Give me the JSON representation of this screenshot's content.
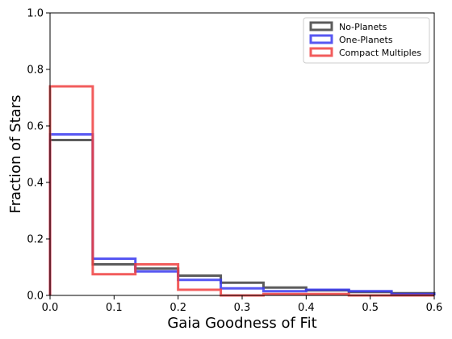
{
  "chart_data": {
    "type": "histogram",
    "xlabel": "Gaia Goodness of Fit",
    "ylabel": "Fraction of Stars",
    "xlim": [
      0.0,
      0.6
    ],
    "ylim": [
      0.0,
      1.0
    ],
    "xticks": [
      "0.0",
      "0.1",
      "0.2",
      "0.3",
      "0.4",
      "0.5",
      "0.6"
    ],
    "yticks": [
      "0.0",
      "0.2",
      "0.4",
      "0.6",
      "0.8",
      "1.0"
    ],
    "grid": false,
    "legend_position": "top-right",
    "bin_edges": [
      0.0,
      0.0667,
      0.1333,
      0.2,
      0.2667,
      0.3333,
      0.4,
      0.4667,
      0.5333,
      0.6
    ],
    "series": [
      {
        "name": "No-Planets",
        "color": "#404040",
        "values": [
          0.55,
          0.11,
          0.095,
          0.07,
          0.045,
          0.028,
          0.018,
          0.012,
          0.008
        ]
      },
      {
        "name": "One-Planets",
        "color": "#3a3af0",
        "values": [
          0.57,
          0.13,
          0.085,
          0.055,
          0.025,
          0.015,
          0.02,
          0.015,
          0.005
        ]
      },
      {
        "name": "Compact Multiples",
        "color": "#f04040",
        "values": [
          0.74,
          0.075,
          0.11,
          0.02,
          0.0,
          0.005,
          0.005,
          0.0,
          0.0
        ]
      }
    ]
  }
}
